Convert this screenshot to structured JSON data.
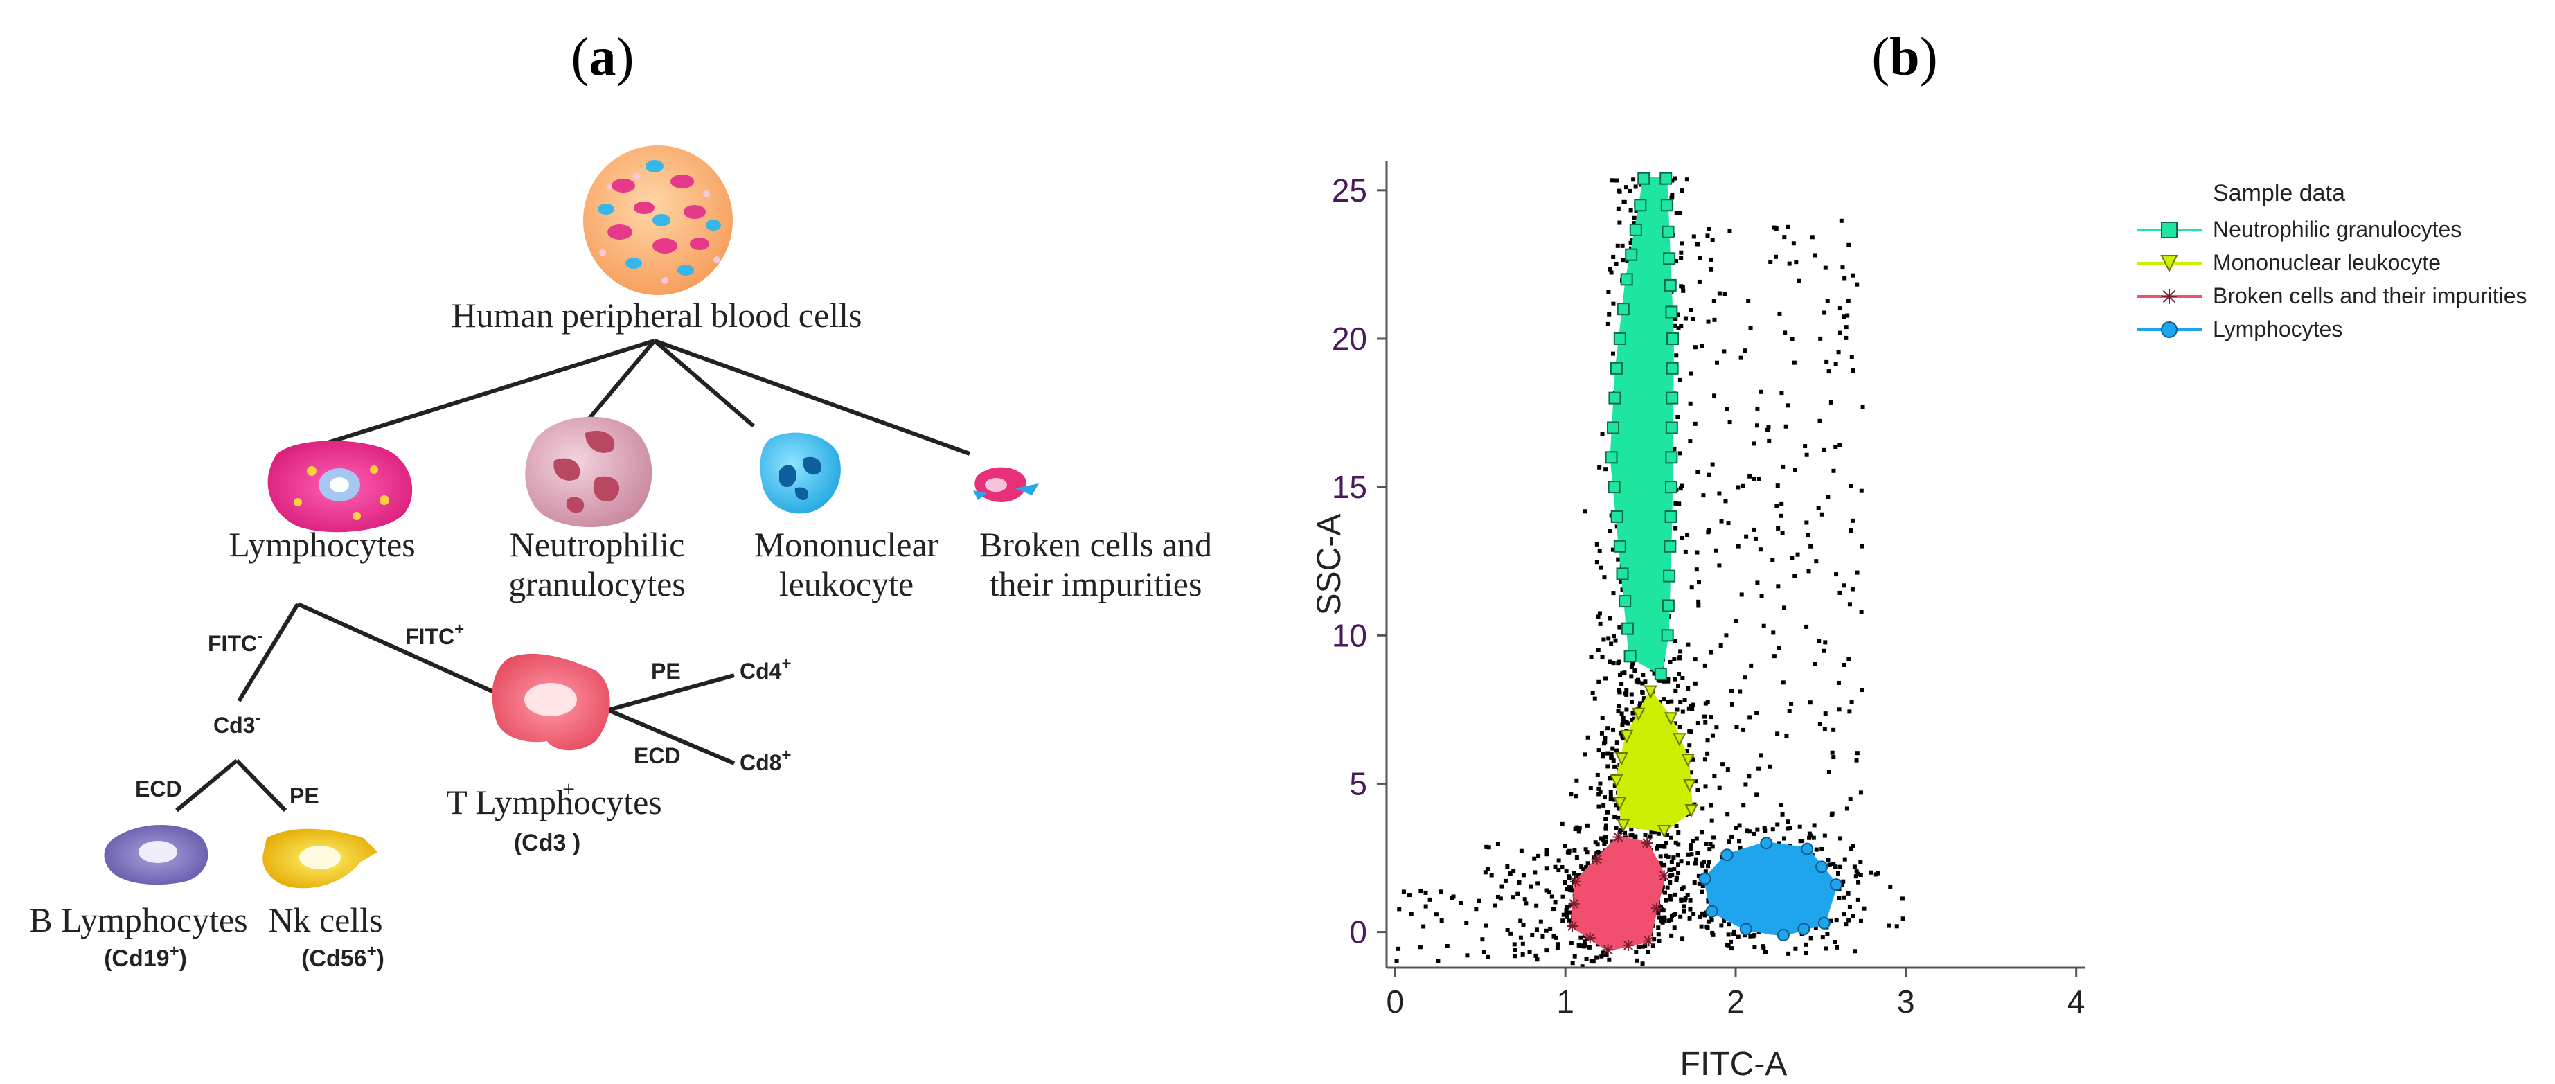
{
  "panel_a": {
    "label_open": "(",
    "label_letter": "a",
    "label_close": ")",
    "root": "Human peripheral blood cells",
    "lymphocytes": "Lymphocytes",
    "neutrophilic_line1": "Neutrophilic",
    "neutrophilic_line2": "granulocytes",
    "mononuclear_line1": "Mononuclear",
    "mononuclear_line2": "leukocyte",
    "broken_line1": "Broken cells and",
    "broken_line2": "their impurities",
    "fitc_neg": "FITC",
    "fitc_neg_sup": "-",
    "fitc_pos": "FITC",
    "fitc_pos_sup": "+",
    "cd3_neg": "Cd3",
    "cd3_neg_sup": "-",
    "ecd_left": "ECD",
    "pe_left": "PE",
    "pe_right": "PE",
    "ecd_right": "ECD",
    "cd4": "Cd4",
    "cd4_sup": "+",
    "cd8": "Cd8",
    "cd8_sup": "+",
    "t_lymph": "T Lymphocytes",
    "t_lymph_sup": "+",
    "t_lymph_marker": "(Cd3   )",
    "b_lymph": "B Lymphocytes",
    "b_lymph_marker": "(Cd19",
    "b_lymph_marker_sup": "+",
    "b_lymph_marker_close": ")",
    "nk": "Nk  cells",
    "nk_marker": "(Cd56",
    "nk_marker_sup": "+",
    "nk_marker_close": ")"
  },
  "panel_b": {
    "label_open": "(",
    "label_letter": "b",
    "label_close": ")"
  },
  "chart_data": {
    "type": "scatter",
    "title": "",
    "xlabel": "FITC-A",
    "ylabel": "SSC-A",
    "xlim": [
      -0.05,
      4.05
    ],
    "ylim": [
      -1.2,
      26
    ],
    "xticks": [
      0,
      1,
      2,
      3,
      4
    ],
    "yticks": [
      0,
      5,
      10,
      15,
      20,
      25
    ],
    "legend_title": "Sample data",
    "legend_position": "top-right",
    "series": [
      {
        "name": "Neutrophilic granulocytes",
        "color": "#1ee6a0",
        "marker": "square",
        "hull": [
          [
            1.46,
            25.4
          ],
          [
            1.59,
            25.4
          ],
          [
            1.63,
            20
          ],
          [
            1.62,
            14
          ],
          [
            1.6,
            10
          ],
          [
            1.56,
            8.7
          ],
          [
            1.38,
            9.3
          ],
          [
            1.32,
            13
          ],
          [
            1.27,
            16
          ],
          [
            1.3,
            19
          ],
          [
            1.36,
            22
          ],
          [
            1.44,
            24.5
          ]
        ]
      },
      {
        "name": "Mononuclear leukocyte",
        "color": "#ccee00",
        "marker": "triangle-down",
        "hull": [
          [
            1.5,
            8.1
          ],
          [
            1.62,
            7.2
          ],
          [
            1.72,
            5.8
          ],
          [
            1.74,
            4.1
          ],
          [
            1.58,
            3.4
          ],
          [
            1.34,
            3.6
          ],
          [
            1.3,
            5.1
          ],
          [
            1.36,
            6.6
          ]
        ]
      },
      {
        "name": "Broken cells and their impurities",
        "color": "#f0506e",
        "marker": "asterisk",
        "hull": [
          [
            1.31,
            3.2
          ],
          [
            1.48,
            3.0
          ],
          [
            1.58,
            1.9
          ],
          [
            1.49,
            -0.3
          ],
          [
            1.25,
            -0.6
          ],
          [
            1.04,
            0.2
          ],
          [
            1.06,
            1.7
          ]
        ]
      },
      {
        "name": "Lymphocytes",
        "color": "#1ea5ee",
        "marker": "circle",
        "hull": [
          [
            2.18,
            3.0
          ],
          [
            2.42,
            2.8
          ],
          [
            2.59,
            1.6
          ],
          [
            2.52,
            0.3
          ],
          [
            2.28,
            -0.1
          ],
          [
            2.06,
            0.1
          ],
          [
            1.86,
            0.7
          ],
          [
            1.82,
            1.8
          ],
          [
            1.95,
            2.6
          ]
        ]
      }
    ]
  }
}
